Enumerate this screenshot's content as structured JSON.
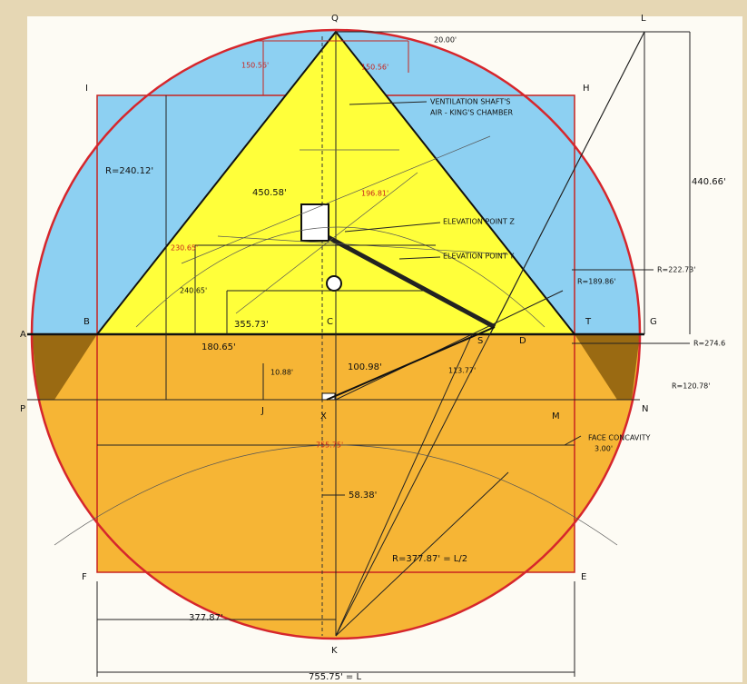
{
  "points": {
    "Q": "Q",
    "L": "L",
    "I": "I",
    "H": "H",
    "A": "A",
    "B": "B",
    "C": "C",
    "T": "T",
    "G": "G",
    "S": "S",
    "P": "P",
    "N": "N",
    "J": "J",
    "X": "X",
    "M": "M",
    "F": "F",
    "E": "E",
    "K": "K",
    "D": "D"
  },
  "annotations": {
    "shaft_1": "VENTILATION SHAFT'S",
    "shaft_2": "AIR - KING'S CHAMBER",
    "elev_z": "ELEVATION POINT Z",
    "elev_y": "ELEVATION POINT Y",
    "concavity_1": "FACE CONCAVITY",
    "concavity_2": "3.00'"
  },
  "dimensions": {
    "r_outer": "R=240.12'",
    "slant": "450.58'",
    "height_right": "440.66'",
    "r_1": "R=189.86'",
    "r_2": "R=222.73'",
    "red_left": "230.65'",
    "d_240": "240.65'",
    "d_355": "355.73'",
    "d_180": "180.65'",
    "r_274": "R=274.6",
    "d_10": "10.88'",
    "d_100": "100.98'",
    "d_113": "113.77'",
    "r_120": "R=120.78'",
    "red_base": "755.75'",
    "d_58": "58.38'",
    "r_big": "R=377.87' = L/2",
    "half_base": "377.87'",
    "base": "755.75' = L",
    "top_left": "150.56'",
    "top_right": "150.56'",
    "top_small": "20.00'",
    "red_mid": "196.81'"
  }
}
